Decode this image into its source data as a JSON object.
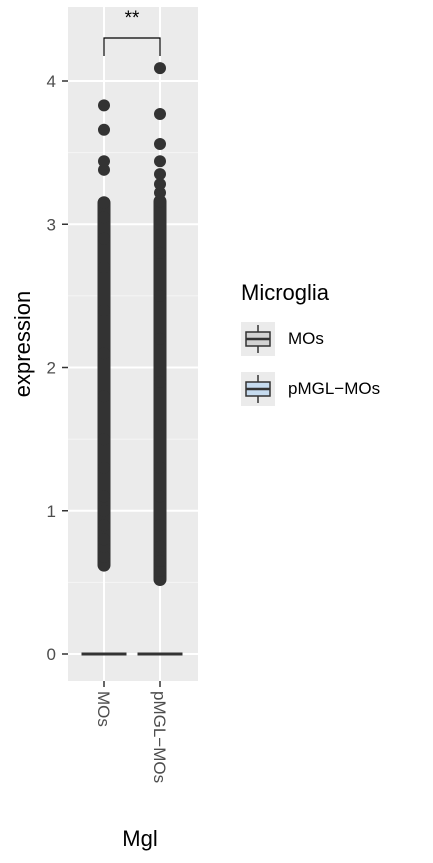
{
  "chart_data": {
    "type": "boxplot",
    "xlabel": "Mgl",
    "ylabel": "expression",
    "ylim": [
      -0.2,
      4.35
    ],
    "yticks": [
      0,
      1,
      2,
      3,
      4
    ],
    "categories": [
      "MOs",
      "pMGL−MOs"
    ],
    "grid": true,
    "significance": {
      "between": [
        "MOs",
        "pMGL−MOs"
      ],
      "label": "**"
    },
    "legend": {
      "title": "Microglia",
      "placement": "right",
      "entries": [
        {
          "label": "MOs",
          "fill": "#d3d3d3"
        },
        {
          "label": "pMGL−MOs",
          "fill": "#c6dbef"
        }
      ]
    },
    "series": [
      {
        "category": "MOs",
        "box": {
          "q1": 0,
          "median": 0,
          "q3": 0,
          "whisker_low": 0,
          "whisker_high": 0
        },
        "outlier_band": [
          0.62,
          3.15
        ],
        "outliers": [
          0.62,
          0.68,
          0.75,
          0.8,
          0.9,
          1.0,
          1.1,
          1.3,
          1.5,
          1.8,
          2.1,
          2.4,
          2.7,
          2.9,
          3.05,
          3.15,
          3.38,
          3.44,
          3.66,
          3.83
        ]
      },
      {
        "category": "pMGL−MOs",
        "box": {
          "q1": 0,
          "median": 0,
          "q3": 0,
          "whisker_low": 0,
          "whisker_high": 0
        },
        "outlier_band": [
          0.52,
          3.16
        ],
        "outliers": [
          0.52,
          0.58,
          0.65,
          0.75,
          0.9,
          1.1,
          1.3,
          1.6,
          1.9,
          2.2,
          2.5,
          2.8,
          3.0,
          3.16,
          3.22,
          3.28,
          3.35,
          3.44,
          3.56,
          3.77,
          4.09
        ]
      }
    ]
  }
}
